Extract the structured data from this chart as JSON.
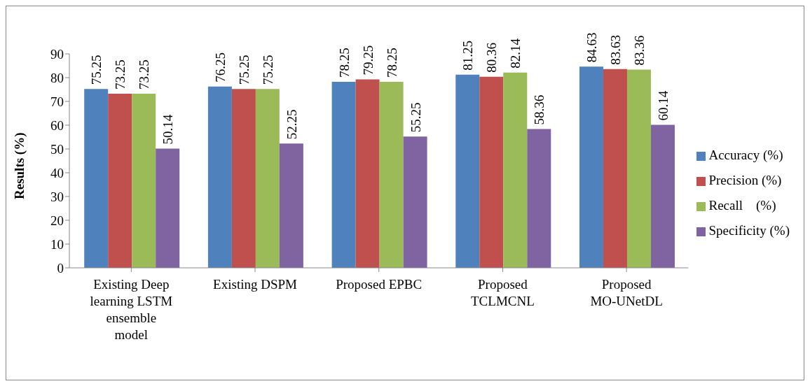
{
  "chart_data": {
    "type": "bar",
    "ylabel": "Results (%)",
    "categories": [
      "Existing Deep learning LSTM ensemble model",
      "Existing DSPM",
      "Proposed EPBC",
      "Proposed TCLMCNL",
      "Proposed MO-UNetDL"
    ],
    "series": [
      {
        "name": "Accuracy (%)",
        "color": "#4f81bd",
        "values": [
          75.25,
          76.25,
          78.25,
          81.25,
          84.63
        ]
      },
      {
        "name": "Precision (%)",
        "color": "#c0504d",
        "values": [
          73.25,
          75.25,
          79.25,
          80.36,
          83.63
        ]
      },
      {
        "name": "Recall    (%)",
        "color": "#9bbb59",
        "values": [
          73.25,
          75.25,
          78.25,
          82.14,
          83.36
        ]
      },
      {
        "name": "Specificity (%)",
        "color": "#8064a2",
        "values": [
          50.14,
          52.25,
          55.25,
          58.36,
          60.14
        ]
      }
    ],
    "ylim": [
      0,
      90
    ],
    "yticks": [
      0,
      10,
      20,
      30,
      40,
      50,
      60,
      70,
      80,
      90
    ],
    "grid": false,
    "legend": "right",
    "data_labels": true
  }
}
